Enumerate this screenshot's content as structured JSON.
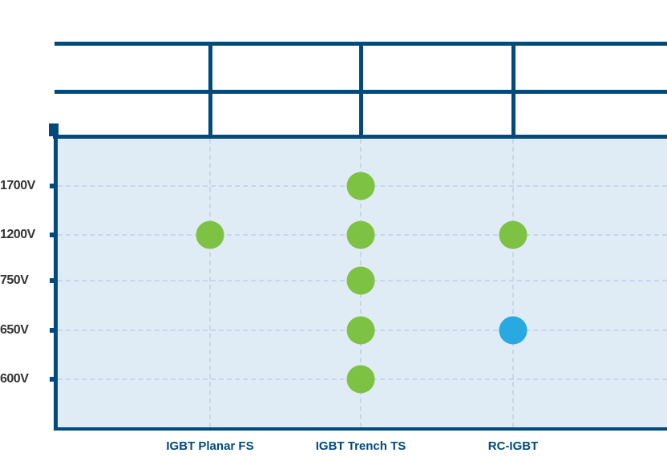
{
  "page": {
    "background": "#ffffff"
  },
  "colors": {
    "navy": "#004A7D",
    "plot_background": "#DFEBF5",
    "grid_dash": "#C7D7E9",
    "green_dot": "#7DC242",
    "blue_dot": "#29A9E1",
    "y_label_text": "#333333"
  },
  "comparison_table": {
    "rows": 2,
    "columns": 4,
    "cells": [
      [
        "",
        "",
        "",
        ""
      ],
      [
        "",
        "",
        "",
        ""
      ]
    ]
  },
  "chart_data": {
    "type": "scatter",
    "title": "",
    "xlabel": "",
    "ylabel": "",
    "categories": [
      "IGBT Planar FS",
      "IGBT Trench TS",
      "RC-IGBT"
    ],
    "y_tick_labels": [
      "1700V",
      "1200V",
      "750V",
      "650V",
      "600V"
    ],
    "grid": "dashed",
    "legend_position": "none",
    "series_colors": {
      "green": "#7DC242",
      "blue": "#29A9E1"
    },
    "points": [
      {
        "category": "IGBT Planar FS",
        "voltage": "1200V",
        "series": "green"
      },
      {
        "category": "IGBT Trench TS",
        "voltage": "1700V",
        "series": "green"
      },
      {
        "category": "IGBT Trench TS",
        "voltage": "1200V",
        "series": "green"
      },
      {
        "category": "IGBT Trench TS",
        "voltage": "750V",
        "series": "green"
      },
      {
        "category": "IGBT Trench TS",
        "voltage": "650V",
        "series": "green"
      },
      {
        "category": "IGBT Trench TS",
        "voltage": "600V",
        "series": "green"
      },
      {
        "category": "RC-IGBT",
        "voltage": "1200V",
        "series": "green"
      },
      {
        "category": "RC-IGBT",
        "voltage": "650V",
        "series": "blue"
      }
    ]
  }
}
